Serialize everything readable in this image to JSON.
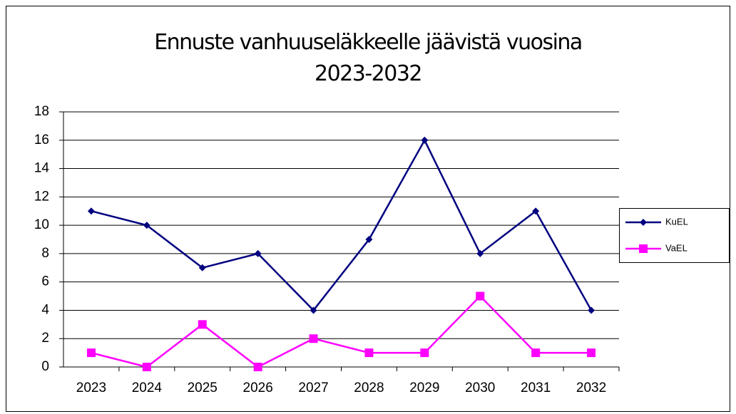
{
  "chart_data": {
    "type": "line",
    "title": "Ennuste vanhuuseläkkeelle jäävistä vuosina 2023-2032",
    "categories": [
      "2023",
      "2024",
      "2025",
      "2026",
      "2027",
      "2028",
      "2029",
      "2030",
      "2031",
      "2032"
    ],
    "series": [
      {
        "name": "KuEL",
        "color": "#000080",
        "marker": "diamond",
        "values": [
          11,
          10,
          7,
          8,
          4,
          9,
          16,
          8,
          11,
          4
        ]
      },
      {
        "name": "VaEL",
        "color": "#ff00ff",
        "marker": "square",
        "values": [
          1,
          0,
          3,
          0,
          2,
          1,
          1,
          5,
          1,
          1
        ]
      }
    ],
    "ylim": [
      0,
      18
    ],
    "yticks": [
      0,
      2,
      4,
      6,
      8,
      10,
      12,
      14,
      16,
      18
    ],
    "grid": true,
    "legend": "right"
  }
}
